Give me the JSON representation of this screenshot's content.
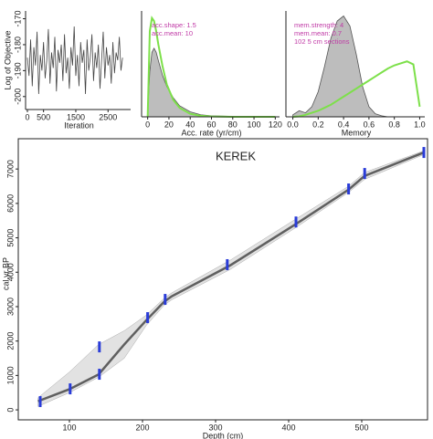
{
  "chart_data": [
    {
      "type": "line",
      "xlabel": "Iteration",
      "ylabel": "Log of Objective",
      "frame": "axes",
      "xlim": [
        0,
        3200
      ],
      "xticks": [
        0,
        500,
        1500,
        2500
      ],
      "ylim": [
        -205,
        -167
      ],
      "yticks": [
        -200,
        -190,
        -180,
        -170
      ],
      "x": [
        0,
        50,
        100,
        150,
        200,
        250,
        300,
        350,
        400,
        450,
        500,
        550,
        600,
        650,
        700,
        750,
        800,
        850,
        900,
        950,
        1000,
        1050,
        1100,
        1150,
        1200,
        1250,
        1300,
        1350,
        1400,
        1450,
        1500,
        1550,
        1600,
        1650,
        1700,
        1750,
        1800,
        1850,
        1900,
        1950,
        2000,
        2050,
        2100,
        2150,
        2200,
        2250,
        2300,
        2350,
        2400,
        2450,
        2500,
        2550,
        2600,
        2650,
        2700,
        2750,
        2800,
        2850,
        2900,
        2950
      ],
      "values": [
        -185,
        -192,
        -178,
        -196,
        -181,
        -188,
        -175,
        -199,
        -184,
        -190,
        -179,
        -193,
        -186,
        -174,
        -195,
        -183,
        -189,
        -177,
        -198,
        -182,
        -187,
        -180,
        -194,
        -176,
        -191,
        -185,
        -197,
        -181,
        -188,
        -173,
        -192,
        -184,
        -196,
        -179,
        -187,
        -182,
        -199,
        -178,
        -190,
        -185,
        -176,
        -194,
        -183,
        -189,
        -180,
        -197,
        -186,
        -175,
        -193,
        -181,
        -188,
        -184,
        -195,
        -179,
        -191,
        -183,
        -186,
        -177,
        -190,
        -185
      ],
      "color": "#444444"
    },
    {
      "type": "area",
      "xlabel": "Acc. rate (yr/cm)",
      "frame": "axes",
      "annotations": [
        "acc.shape: 1.5",
        "acc.mean: 10"
      ],
      "xlim": [
        -4,
        124
      ],
      "xticks": [
        0,
        20,
        40,
        60,
        80,
        100,
        120
      ],
      "ylim": [
        0,
        1.05
      ],
      "x": [
        0,
        2,
        4,
        6,
        8,
        10,
        14,
        18,
        24,
        30,
        40,
        50,
        60,
        80,
        100,
        120
      ],
      "series": [
        {
          "color": "#bdbdbd",
          "fill": true,
          "values": [
            0.04,
            0.45,
            0.64,
            0.68,
            0.64,
            0.56,
            0.41,
            0.3,
            0.19,
            0.11,
            0.05,
            0.02,
            0.01,
            0.004,
            0.002,
            0.001
          ]
        },
        {
          "color": "#7de04a",
          "fill": false,
          "values": [
            0,
            0.85,
            0.98,
            0.95,
            0.85,
            0.72,
            0.5,
            0.32,
            0.17,
            0.09,
            0.03,
            0.01,
            0.003,
            0.0005,
            0.0001,
            0
          ]
        }
      ]
    },
    {
      "type": "area",
      "xlabel": "Memory",
      "frame": "axes",
      "annotations": [
        "mem.strength: 4",
        "mem.mean: 0.7",
        "102 5 cm sections"
      ],
      "xlim": [
        -0.04,
        1.04
      ],
      "xticks": [
        {
          "value": 0,
          "label": "0.0"
        },
        0.2,
        0.4,
        0.6,
        0.8,
        {
          "value": 1,
          "label": "1.0"
        }
      ],
      "ylim": [
        0,
        1.05
      ],
      "x": [
        0,
        0.05,
        0.1,
        0.15,
        0.2,
        0.25,
        0.3,
        0.35,
        0.4,
        0.45,
        0.5,
        0.55,
        0.6,
        0.65,
        0.7,
        0.75,
        0.8,
        0.85,
        0.9,
        0.95,
        1
      ],
      "series": [
        {
          "color": "#bdbdbd",
          "fill": true,
          "values": [
            0.02,
            0.06,
            0.04,
            0.1,
            0.25,
            0.5,
            0.78,
            0.95,
            1,
            0.9,
            0.62,
            0.3,
            0.1,
            0.03,
            0.01,
            0,
            0,
            0,
            0,
            0,
            0
          ]
        },
        {
          "color": "#7de04a",
          "fill": false,
          "values": [
            0,
            0.005,
            0.02,
            0.04,
            0.06,
            0.09,
            0.12,
            0.16,
            0.2,
            0.24,
            0.28,
            0.32,
            0.36,
            0.4,
            0.44,
            0.48,
            0.51,
            0.53,
            0.55,
            0.52,
            0.1
          ]
        }
      ]
    },
    {
      "type": "age-depth",
      "title": "KEREK",
      "xlabel": "Depth (cm)",
      "ylabel": "cal yr BP",
      "frame": "box",
      "xlim": [
        30,
        590
      ],
      "xticks": [
        100,
        200,
        300,
        400,
        500
      ],
      "ylim": [
        -290,
        7880
      ],
      "yticks": [
        0,
        1000,
        2000,
        3000,
        4000,
        5000,
        6000,
        7000
      ],
      "x": [
        57,
        100,
        140,
        175,
        205,
        230,
        240,
        320,
        410,
        482,
        504,
        585
      ],
      "values": [
        250,
        600,
        1030,
        1900,
        2600,
        3150,
        3300,
        4200,
        5400,
        6400,
        6800,
        7480
      ],
      "range": {
        "upper": [
          350,
          1100,
          1900,
          2300,
          2750,
          3250,
          3400,
          4350,
          5550,
          6500,
          6900,
          7530
        ],
        "lower": [
          100,
          500,
          950,
          1500,
          2450,
          3050,
          3200,
          4080,
          5300,
          6320,
          6700,
          7420
        ]
      },
      "color": "#333333",
      "range_color": "#cfcfcf",
      "dates": {
        "color": "#2a3cd8",
        "x": [
          60,
          101,
          141,
          141,
          207,
          231,
          316,
          410,
          482,
          504,
          585
        ],
        "values": [
          240,
          610,
          1035,
          1830,
          2680,
          3210,
          4220,
          5460,
          6420,
          6870,
          7480
        ]
      }
    }
  ]
}
